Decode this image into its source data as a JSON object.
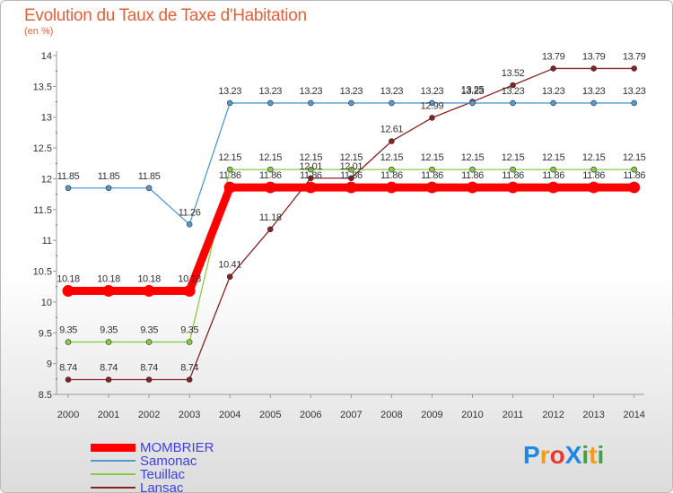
{
  "chart_data": {
    "type": "line",
    "title": "Evolution du Taux de Taxe d'Habitation",
    "ylabel": "(en %)",
    "ylim": [
      8.5,
      14
    ],
    "yticks": [
      "8.5",
      "9",
      "9.5",
      "10",
      "10.5",
      "11",
      "11.5",
      "12",
      "12.5",
      "13",
      "13.5",
      "14"
    ],
    "categories": [
      "2000",
      "2001",
      "2002",
      "2003",
      "2004",
      "2005",
      "2006",
      "2007",
      "2008",
      "2009",
      "2010",
      "2011",
      "2012",
      "2013",
      "2014"
    ],
    "series": [
      {
        "name": "MOMBRIER",
        "color": "#ff0000",
        "values": [
          10.18,
          10.18,
          10.18,
          10.18,
          11.86,
          11.86,
          11.86,
          11.86,
          11.86,
          11.86,
          11.86,
          11.86,
          11.86,
          11.86,
          11.86
        ],
        "labels": [
          "10.18",
          "10.18",
          "10.18",
          "10.18",
          "11.86",
          "11.86",
          "11.86",
          "11.86",
          "11.86",
          "11.86",
          "11.86",
          "11.86",
          "11.86",
          "11.86",
          "11.86"
        ]
      },
      {
        "name": "Samonac",
        "color": "#5599cc",
        "values": [
          11.85,
          11.85,
          11.85,
          11.26,
          13.23,
          13.23,
          13.23,
          13.23,
          13.23,
          13.23,
          13.23,
          13.23,
          13.23,
          13.23,
          13.23
        ],
        "labels": [
          "11.85",
          "11.85",
          "11.85",
          "11.26",
          "13.23",
          "13.23",
          "13.23",
          "13.23",
          "13.23",
          "13.23",
          "13.23",
          "13.23",
          "13.23",
          "13.23",
          "13.23"
        ]
      },
      {
        "name": "Teuillac",
        "color": "#88cc44",
        "values": [
          9.35,
          9.35,
          9.35,
          9.35,
          12.15,
          12.15,
          12.15,
          12.15,
          12.15,
          12.15,
          12.15,
          12.15,
          12.15,
          12.15,
          12.15
        ],
        "labels": [
          "9.35",
          "9.35",
          "9.35",
          "9.35",
          "12.15",
          "12.15",
          "12.15",
          "12.15",
          "12.15",
          "12.15",
          "12.15",
          "12.15",
          "12.15",
          "12.15",
          "12.15"
        ]
      },
      {
        "name": "Lansac",
        "color": "#882222",
        "values": [
          8.74,
          8.74,
          8.74,
          8.74,
          10.41,
          11.18,
          12.01,
          12.01,
          12.61,
          12.99,
          13.25,
          13.52,
          13.79,
          13.79,
          13.79
        ],
        "labels": [
          "8.74",
          "8.74",
          "8.74",
          "8.74",
          "10.41",
          "11.18",
          "12.01",
          "12.01",
          "12.61",
          "12.99",
          "13.25",
          "13.52",
          "13.79",
          "13.79",
          "13.79"
        ]
      }
    ],
    "legend": [
      "MOMBRIER",
      "Samonac",
      "Teuillac",
      "Lansac"
    ]
  },
  "logo": {
    "text": "ProXiti",
    "letters": [
      "P",
      "r",
      "o",
      "X",
      "i",
      "t",
      "i"
    ],
    "colors": [
      "#1e88e5",
      "#f39c12",
      "#e53935",
      "#1e88e5",
      "#43a047",
      "#f39c12",
      "#43a047"
    ]
  }
}
